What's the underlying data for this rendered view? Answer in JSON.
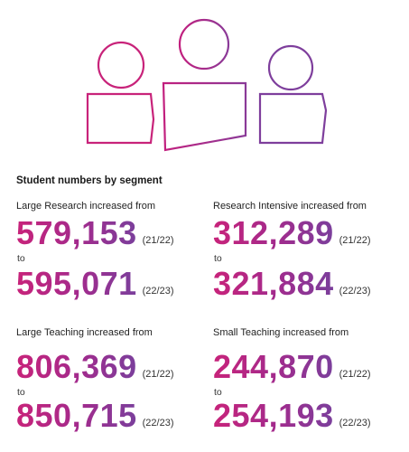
{
  "heading": "Student numbers by segment",
  "to_word": "to",
  "segments": [
    {
      "title": "Large Research increased from",
      "from_value": "579,153",
      "from_year": "(21/22)",
      "to_value": "595,071",
      "to_year": "(22/23)"
    },
    {
      "title": "Research Intensive increased from",
      "from_value": "312,289",
      "from_year": "(21/22)",
      "to_value": "321,884",
      "to_year": "(22/23)"
    },
    {
      "title": "Large Teaching increased from",
      "from_value": "806,369",
      "from_year": "(21/22)",
      "to_value": "850,715",
      "to_year": "(22/23)"
    },
    {
      "title": "Small Teaching increased from",
      "from_value": "244,870",
      "from_year": "(21/22)",
      "to_value": "254,193",
      "to_year": "(22/23)"
    }
  ],
  "colors": {
    "magenta": "#c8237a",
    "purple": "#7a3f9c",
    "mid": "#a42a8c"
  },
  "icon": "three-people-icon"
}
